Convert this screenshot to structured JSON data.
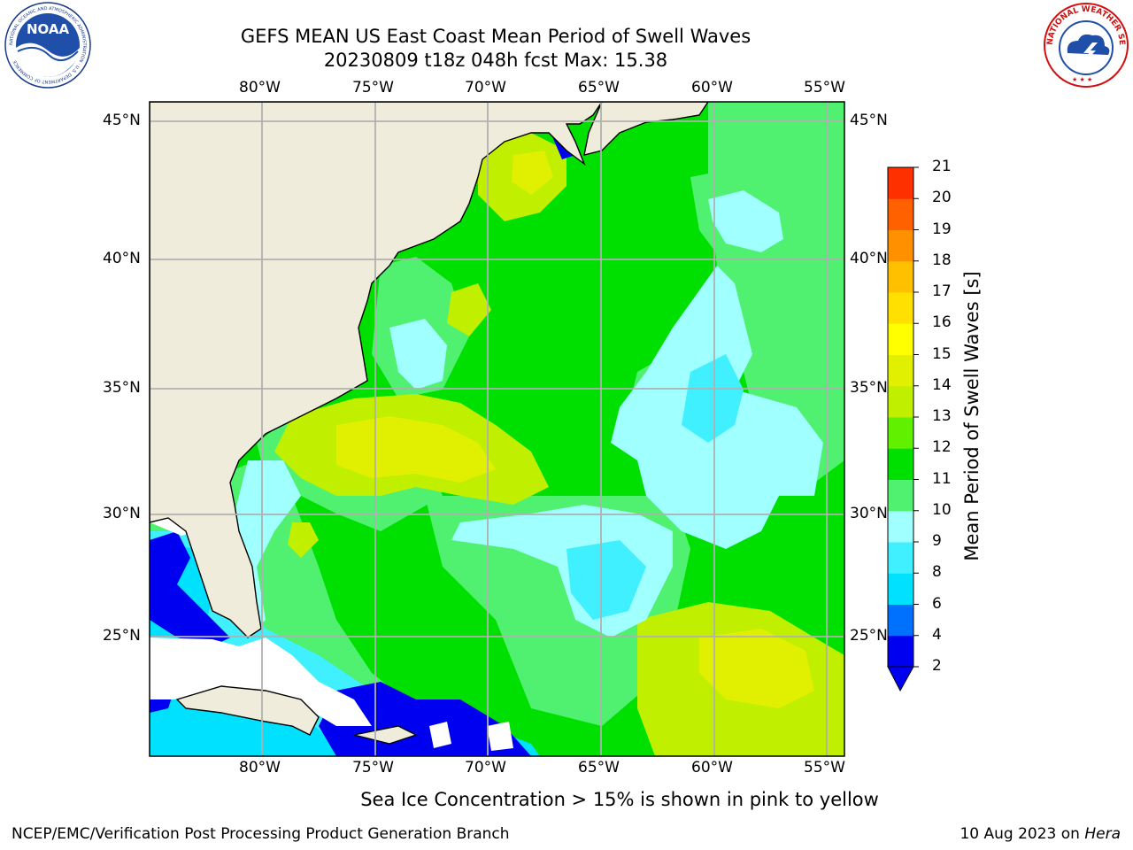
{
  "header": {
    "title_line1": "GEFS MEAN US East Coast Mean Period of Swell Waves",
    "title_line2": "20230809 t18z 048h fcst   Max: 15.38"
  },
  "logos": {
    "noaa": {
      "icon": "noaa-logo",
      "text": "NOAA",
      "ring_text": "NATIONAL OCEANIC AND ATMOSPHERIC ADMINISTRATION · U.S. DEPARTMENT OF COMMERCE"
    },
    "nws": {
      "icon": "nws-logo",
      "ring_text": "NATIONAL WEATHER SERVICE"
    }
  },
  "map": {
    "lon_labels": [
      "80°W",
      "75°W",
      "70°W",
      "65°W",
      "60°W",
      "55°W"
    ],
    "lat_labels": [
      "45°N",
      "40°N",
      "35°N",
      "30°N",
      "25°N"
    ],
    "colors": {
      "land": "#efecdc",
      "ocean_base": "#00e000",
      "grid": "#b0b0b0"
    }
  },
  "colorbar": {
    "title": "Mean Period of Swell Waves [s]",
    "ticks": [
      "2",
      "4",
      "6",
      "8",
      "9",
      "10",
      "11",
      "12",
      "13",
      "14",
      "15",
      "16",
      "17",
      "18",
      "19",
      "20",
      "21"
    ],
    "colors": [
      "#0000f0",
      "#0070ff",
      "#00e0ff",
      "#40f0ff",
      "#a0ffff",
      "#50f070",
      "#00e000",
      "#60f000",
      "#c0f000",
      "#e0f000",
      "#ffff00",
      "#ffe000",
      "#ffc000",
      "#ff9000",
      "#ff6000",
      "#ff3000",
      "#ff0000"
    ]
  },
  "footer": {
    "note": "Sea Ice Concentration > 15% is shown in pink to yellow",
    "credit": "NCEP/EMC/Verification Post Processing Product Generation Branch",
    "date": "10 Aug 2023 on",
    "host": "Hera"
  }
}
